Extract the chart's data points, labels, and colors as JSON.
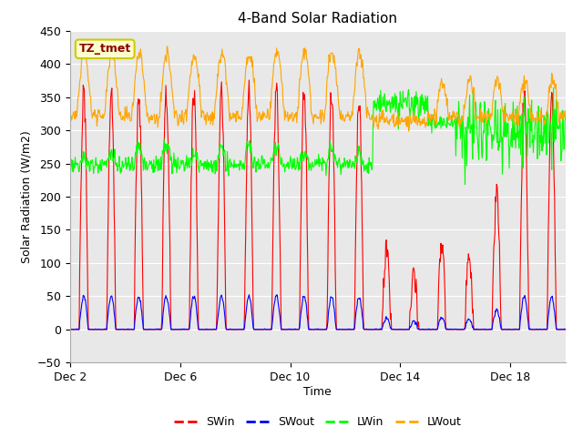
{
  "title": "4-Band Solar Radiation",
  "xlabel": "Time",
  "ylabel": "Solar Radiation (W/m2)",
  "ylim": [
    -50,
    450
  ],
  "yticks": [
    -50,
    0,
    50,
    100,
    150,
    200,
    250,
    300,
    350,
    400,
    450
  ],
  "xtick_labels": [
    "Dec 2",
    "Dec 6",
    "Dec 10",
    "Dec 14",
    "Dec 18"
  ],
  "xtick_positions": [
    0,
    4,
    8,
    12,
    16
  ],
  "colors": {
    "SWin": "#ff0000",
    "SWout": "#0000ff",
    "LWin": "#00ff00",
    "LWout": "#ffa500"
  },
  "annotation_text": "TZ_tmet",
  "annotation_color": "#8b0000",
  "annotation_bg": "#ffffcc",
  "annotation_border": "#cccc00",
  "fig_bg_color": "#ffffff",
  "plot_bg_color": "#e8e8e8",
  "grid_color": "#ffffff",
  "n_days": 18,
  "seed": 42
}
